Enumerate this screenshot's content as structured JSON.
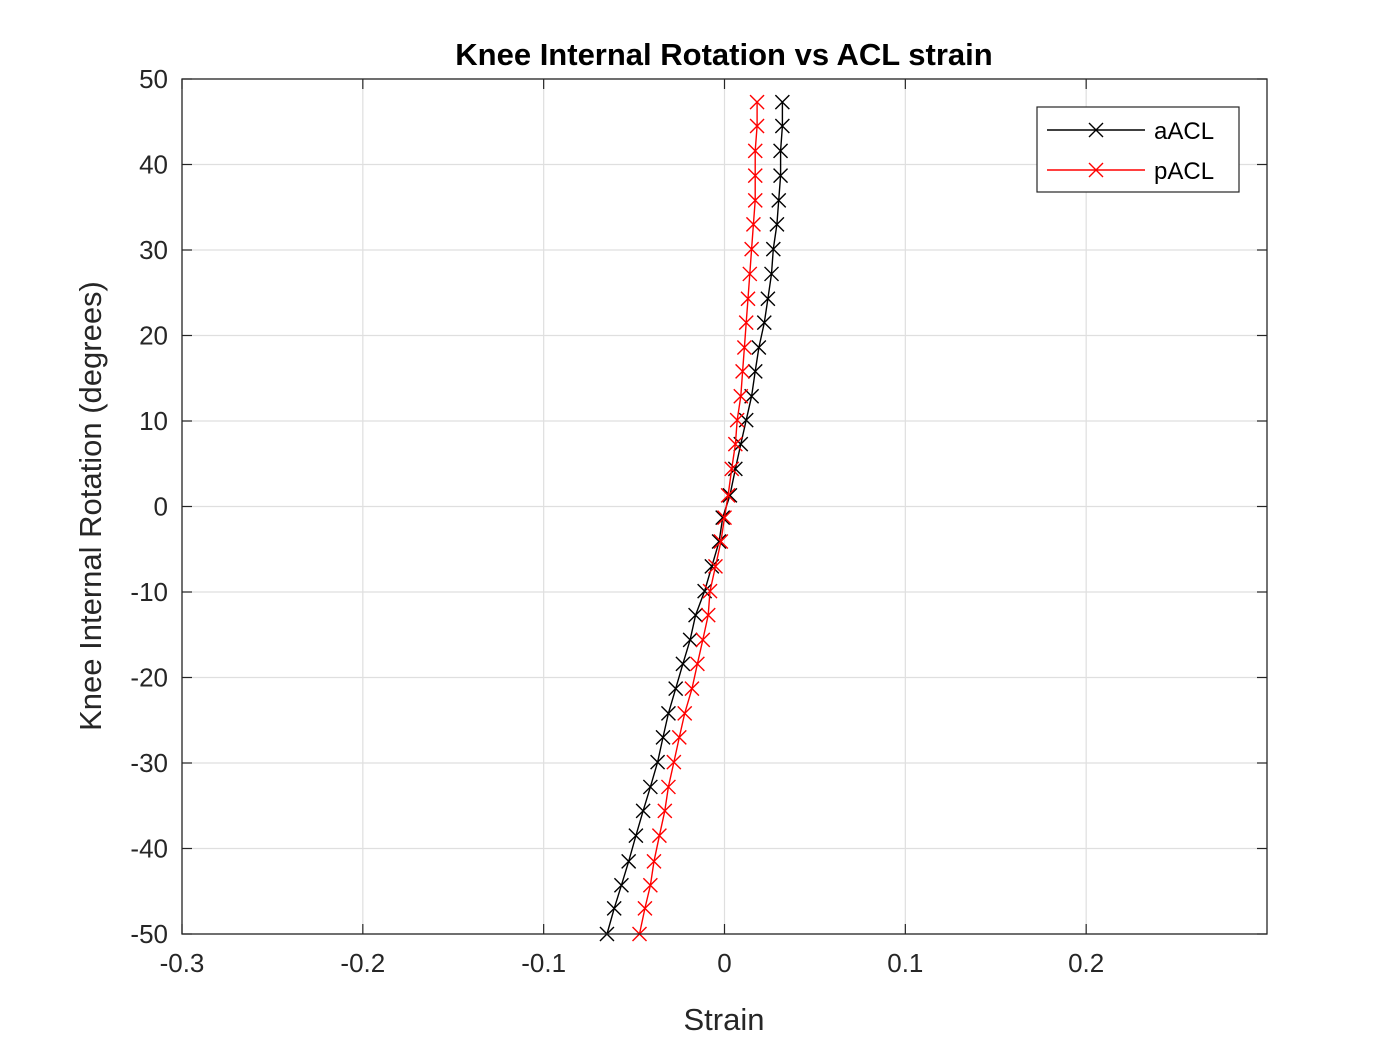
{
  "chart_data": {
    "type": "line",
    "title": "Knee Internal Rotation vs ACL strain",
    "xlabel": "Strain",
    "ylabel": "Knee Internal Rotation (degrees)",
    "xlim": [
      -0.3,
      0.3
    ],
    "ylim": [
      -50,
      50
    ],
    "xticks": [
      -0.3,
      -0.2,
      -0.1,
      0,
      0.1,
      0.2
    ],
    "xtick_labels": [
      "-0.3",
      "-0.2",
      "-0.1",
      "0",
      "0.1",
      "0.2"
    ],
    "yticks": [
      -50,
      -40,
      -30,
      -20,
      -10,
      0,
      10,
      20,
      30,
      40,
      50
    ],
    "ytick_labels": [
      "-50",
      "-40",
      "-30",
      "-20",
      "-10",
      "0",
      "10",
      "20",
      "30",
      "40",
      "50"
    ],
    "grid": true,
    "legend": "top-right",
    "marker": "x",
    "series": [
      {
        "name": "aACL",
        "color": "#000000",
        "points": [
          [
            -0.065,
            -50.0
          ],
          [
            -0.061,
            -47.0
          ],
          [
            -0.057,
            -44.3
          ],
          [
            -0.053,
            -41.5
          ],
          [
            -0.049,
            -38.5
          ],
          [
            -0.045,
            -35.6
          ],
          [
            -0.041,
            -32.8
          ],
          [
            -0.037,
            -29.9
          ],
          [
            -0.034,
            -27.0
          ],
          [
            -0.031,
            -24.2
          ],
          [
            -0.027,
            -21.3
          ],
          [
            -0.023,
            -18.4
          ],
          [
            -0.019,
            -15.6
          ],
          [
            -0.016,
            -12.7
          ],
          [
            -0.011,
            -9.9
          ],
          [
            -0.007,
            -7.0
          ],
          [
            -0.003,
            -4.1
          ],
          [
            -0.001,
            -1.3
          ],
          [
            0.003,
            1.3
          ],
          [
            0.006,
            4.4
          ],
          [
            0.009,
            7.3
          ],
          [
            0.012,
            10.1
          ],
          [
            0.015,
            12.9
          ],
          [
            0.017,
            15.8
          ],
          [
            0.019,
            18.6
          ],
          [
            0.022,
            21.5
          ],
          [
            0.024,
            24.3
          ],
          [
            0.026,
            27.2
          ],
          [
            0.027,
            30.1
          ],
          [
            0.029,
            33.0
          ],
          [
            0.03,
            35.8
          ],
          [
            0.031,
            38.7
          ],
          [
            0.031,
            41.6
          ],
          [
            0.032,
            44.5
          ],
          [
            0.032,
            47.3
          ]
        ]
      },
      {
        "name": "pACL",
        "color": "#ff0000",
        "points": [
          [
            -0.047,
            -50.0
          ],
          [
            -0.044,
            -47.0
          ],
          [
            -0.041,
            -44.3
          ],
          [
            -0.039,
            -41.5
          ],
          [
            -0.036,
            -38.5
          ],
          [
            -0.033,
            -35.6
          ],
          [
            -0.031,
            -32.8
          ],
          [
            -0.028,
            -29.9
          ],
          [
            -0.025,
            -27.0
          ],
          [
            -0.022,
            -24.2
          ],
          [
            -0.018,
            -21.3
          ],
          [
            -0.015,
            -18.4
          ],
          [
            -0.012,
            -15.6
          ],
          [
            -0.009,
            -12.7
          ],
          [
            -0.008,
            -9.9
          ],
          [
            -0.005,
            -7.0
          ],
          [
            -0.002,
            -4.1
          ],
          [
            0.0,
            -1.3
          ],
          [
            0.002,
            1.3
          ],
          [
            0.004,
            4.4
          ],
          [
            0.006,
            7.3
          ],
          [
            0.007,
            10.1
          ],
          [
            0.009,
            12.9
          ],
          [
            0.01,
            15.8
          ],
          [
            0.011,
            18.6
          ],
          [
            0.012,
            21.5
          ],
          [
            0.013,
            24.3
          ],
          [
            0.014,
            27.2
          ],
          [
            0.015,
            30.1
          ],
          [
            0.016,
            33.0
          ],
          [
            0.017,
            35.8
          ],
          [
            0.017,
            38.7
          ],
          [
            0.017,
            41.6
          ],
          [
            0.018,
            44.5
          ],
          [
            0.018,
            47.3
          ]
        ]
      }
    ]
  }
}
